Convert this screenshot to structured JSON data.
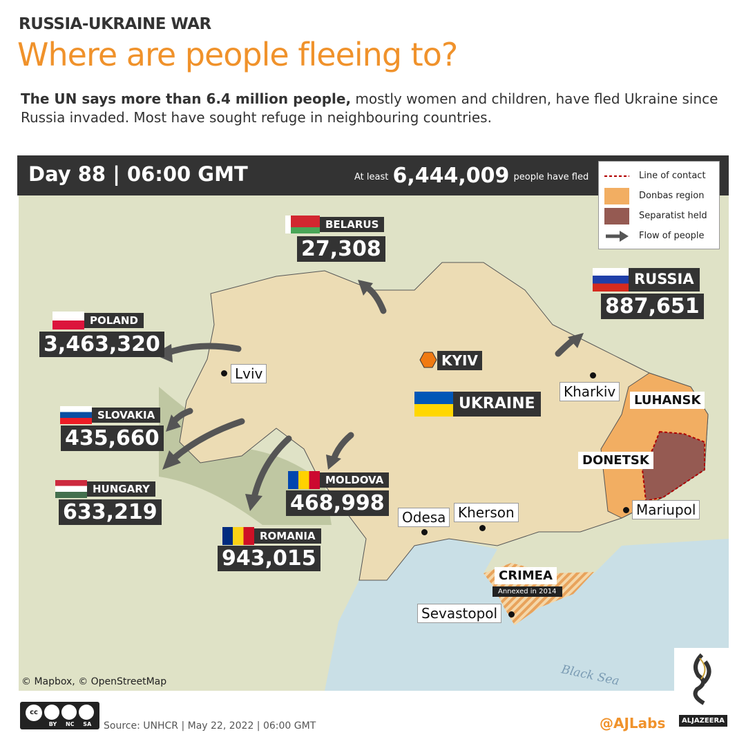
{
  "header": {
    "kicker": "RUSSIA-UKRAINE WAR",
    "title": "Where are people fleeing to?",
    "intro_bold": "The UN says more than 6.4 million people,",
    "intro_rest": " mostly women and children, have fled Ukraine since Russia invaded. Most have sought refuge in neighbouring countries."
  },
  "bar": {
    "day": "Day 88 | 06:00 GMT",
    "at_least": "At least",
    "total": "6,444,009",
    "suffix": "people have fled"
  },
  "legend": [
    {
      "label": "Line of contact",
      "color": "#b00000"
    },
    {
      "label": "Donbas region",
      "color": "#f2ae62"
    },
    {
      "label": "Separatist held",
      "color": "#955a52"
    },
    {
      "label": "Flow of people",
      "color": "#555555"
    }
  ],
  "countries": {
    "belarus": {
      "name": "BELARUS",
      "value": "27,308"
    },
    "russia": {
      "name": "RUSSIA",
      "value": "887,651"
    },
    "poland": {
      "name": "POLAND",
      "value": "3,463,320"
    },
    "slovakia": {
      "name": "SLOVAKIA",
      "value": "435,660"
    },
    "hungary": {
      "name": "HUNGARY",
      "value": "633,219"
    },
    "moldova": {
      "name": "MOLDOVA",
      "value": "468,998"
    },
    "romania": {
      "name": "ROMANIA",
      "value": "943,015"
    },
    "ukraine": {
      "name": "UKRAINE"
    }
  },
  "cities": {
    "kyiv": "KYIV",
    "lviv": "Lviv",
    "kharkiv": "Kharkiv",
    "odesa": "Odesa",
    "kherson": "Kherson",
    "mariupol": "Mariupol",
    "sevastopol": "Sevastopol"
  },
  "regions": {
    "luhansk": "LUHANSK",
    "donetsk": "DONETSK",
    "crimea": "CRIMEA",
    "crimea_note": "Annexed in 2014"
  },
  "sea": "Black Sea",
  "credit": "© Mapbox, © OpenStreetMap",
  "footer": {
    "source": "Source: UNHCR | May 22, 2022  |  06:00 GMT",
    "handle": "@AJLabs",
    "brand": "ALJAZEERA",
    "license": "BY NC SA"
  },
  "colors": {
    "accent": "#f0922b",
    "bar": "#333333",
    "ukraine": "#ecdcb4",
    "sea": "#c9dfe6"
  }
}
